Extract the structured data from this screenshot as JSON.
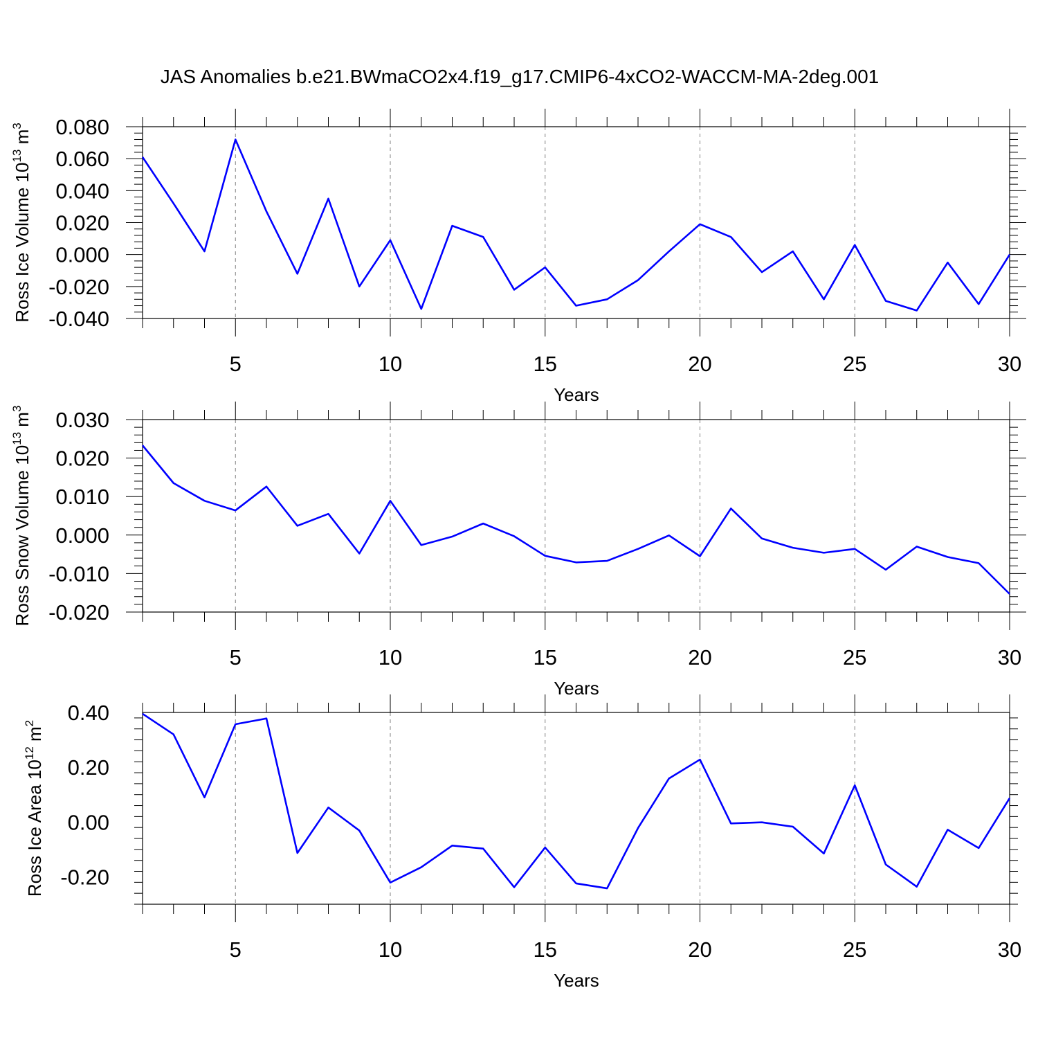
{
  "title": "JAS Anomalies b.e21.BWmaCO2x4.f19_g17.CMIP6-4xCO2-WACCM-MA-2deg.001",
  "colors": {
    "line": "#0000ff",
    "axis": "#000000",
    "grid": "#808080"
  },
  "chart_data": [
    {
      "type": "line",
      "ylabel_main": "Ross Ice Volume 10",
      "ylabel_exp": "13",
      "ylabel_unit": "m",
      "ylabel_unit_exp": "3",
      "xlabel": "Years",
      "xlim": [
        2,
        30
      ],
      "ylim": [
        -0.04,
        0.08
      ],
      "yticks": [
        "0.080",
        "0.060",
        "0.040",
        "0.020",
        "0.000",
        "-0.020",
        "-0.040"
      ],
      "xticks": [
        "5",
        "10",
        "15",
        "20",
        "25",
        "30"
      ],
      "grid": "vertical dashed at major x ticks",
      "series": [
        {
          "x": [
            2,
            3,
            4,
            5,
            6,
            7,
            8,
            9,
            10,
            11,
            12,
            13,
            14,
            15,
            16,
            17,
            18,
            19,
            20,
            21,
            22,
            23,
            24,
            25,
            26,
            27,
            28,
            29,
            30
          ],
          "values": [
            0.061,
            0.032,
            0.002,
            0.072,
            0.027,
            -0.012,
            0.035,
            -0.02,
            0.009,
            -0.034,
            0.018,
            0.011,
            -0.022,
            -0.008,
            -0.032,
            -0.028,
            -0.016,
            0.002,
            0.019,
            0.011,
            -0.011,
            0.002,
            -0.028,
            0.006,
            -0.029,
            -0.035,
            -0.005,
            -0.031,
            0.0
          ]
        }
      ]
    },
    {
      "type": "line",
      "ylabel_main": "Ross Snow Volume 10",
      "ylabel_exp": "13",
      "ylabel_unit": "m",
      "ylabel_unit_exp": "3",
      "xlabel": "Years",
      "xlim": [
        2,
        30
      ],
      "ylim": [
        -0.02,
        0.03
      ],
      "yticks": [
        "0.030",
        "0.020",
        "0.010",
        "0.000",
        "-0.010",
        "-0.020"
      ],
      "xticks": [
        "5",
        "10",
        "15",
        "20",
        "25",
        "30"
      ],
      "grid": "vertical dashed at major x ticks",
      "series": [
        {
          "x": [
            2,
            3,
            4,
            5,
            6,
            7,
            8,
            9,
            10,
            11,
            12,
            13,
            14,
            15,
            16,
            17,
            18,
            19,
            20,
            21,
            22,
            23,
            24,
            25,
            26,
            27,
            28,
            29,
            30
          ],
          "values": [
            0.0233,
            0.0135,
            0.0089,
            0.0064,
            0.0126,
            0.0024,
            0.0055,
            -0.0048,
            0.0089,
            -0.0026,
            -0.0004,
            0.003,
            -0.0003,
            -0.0054,
            -0.0071,
            -0.0067,
            -0.0036,
            -0.0001,
            -0.0055,
            0.0069,
            -0.0009,
            -0.0033,
            -0.0046,
            -0.0036,
            -0.009,
            -0.003,
            -0.0057,
            -0.0073,
            -0.0153
          ]
        }
      ]
    },
    {
      "type": "line",
      "ylabel_main": "Ross Ice Area 10",
      "ylabel_exp": "12",
      "ylabel_unit": "m",
      "ylabel_unit_exp": "2",
      "xlabel": "Years",
      "xlim": [
        2,
        30
      ],
      "ylim": [
        -0.3,
        0.4
      ],
      "yticks": [
        "0.40",
        "0.20",
        "0.00",
        "-0.20"
      ],
      "xticks": [
        "5",
        "10",
        "15",
        "20",
        "25",
        "30"
      ],
      "grid": "vertical dashed at major x ticks",
      "series": [
        {
          "x": [
            2,
            3,
            4,
            5,
            6,
            7,
            8,
            9,
            10,
            11,
            12,
            13,
            14,
            15,
            16,
            17,
            18,
            19,
            20,
            21,
            22,
            23,
            24,
            25,
            26,
            27,
            28,
            29,
            30
          ],
          "values": [
            0.395,
            0.32,
            0.09,
            0.357,
            0.378,
            -0.113,
            0.053,
            -0.031,
            -0.221,
            -0.165,
            -0.086,
            -0.097,
            -0.238,
            -0.093,
            -0.224,
            -0.242,
            -0.022,
            0.159,
            0.228,
            -0.005,
            -0.001,
            -0.017,
            -0.115,
            0.134,
            -0.155,
            -0.236,
            -0.028,
            -0.095,
            0.087
          ]
        }
      ]
    }
  ]
}
